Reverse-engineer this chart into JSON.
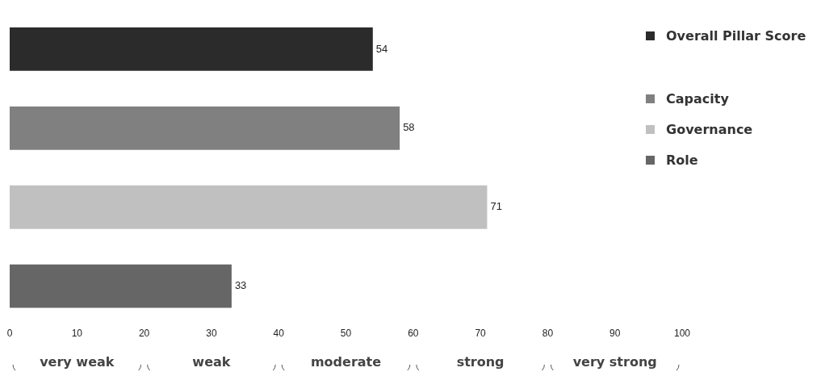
{
  "chart_data": {
    "type": "bar",
    "orientation": "horizontal",
    "categories": [
      null,
      null,
      null,
      null
    ],
    "stacked": true,
    "series": [
      {
        "name": "Overall Pillar Score",
        "color": "#2b2b2b",
        "values": [
          54,
          null,
          null,
          null
        ]
      },
      {
        "name": "Capacity",
        "color": "#808080",
        "values": [
          null,
          58,
          null,
          null
        ]
      },
      {
        "name": "Governance",
        "color": "#c0c0c0",
        "values": [
          null,
          null,
          71,
          null
        ]
      },
      {
        "name": "Role",
        "color": "#666666",
        "values": [
          null,
          null,
          null,
          33
        ]
      }
    ],
    "xlim": [
      0,
      100
    ],
    "xticks": [
      0,
      10,
      20,
      30,
      40,
      50,
      60,
      70,
      80,
      90,
      100
    ],
    "annotations": [
      "very weak",
      "weak",
      "moderate",
      "strong",
      "very strong"
    ],
    "data_labels": true,
    "grid": false,
    "legend": "top right"
  }
}
